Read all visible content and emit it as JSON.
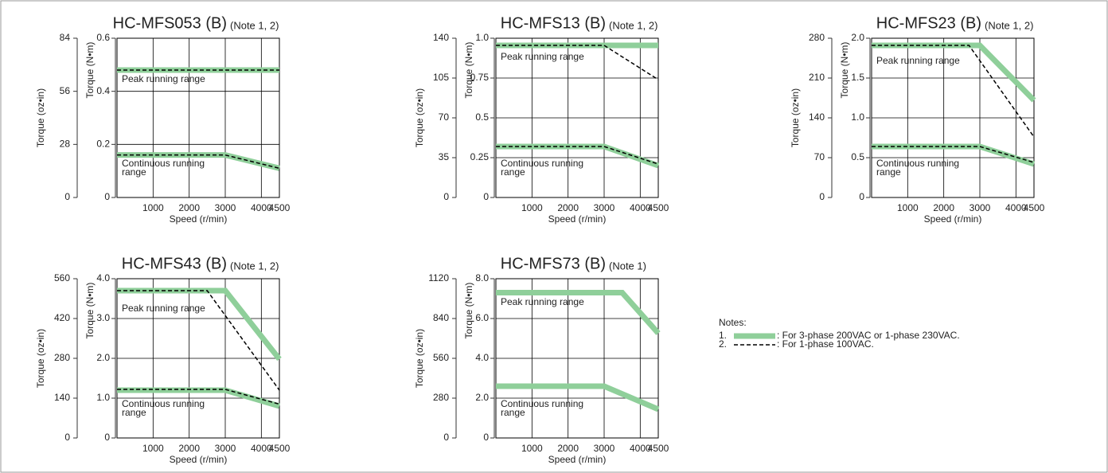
{
  "chart_data": [
    {
      "type": "line",
      "title": "HC-MFS053 (B)",
      "note": "(Note 1, 2)",
      "x_label": "Speed (r/min)",
      "y_label": "Torque (N•m)",
      "y2_label": "Torque (oz•in)",
      "xlim": [
        0,
        4500
      ],
      "xticks": [
        1000,
        2000,
        3000,
        4000,
        4500
      ],
      "ylim": [
        0,
        0.6
      ],
      "yticks": [
        0,
        0.2,
        0.4,
        0.6
      ],
      "y2lim": [
        0,
        84
      ],
      "y2ticks": [
        0,
        28,
        56,
        84
      ],
      "annotations": [
        "Peak running range",
        "Continuous running",
        "range"
      ],
      "series": [
        {
          "color": "#8fcf9a",
          "style": "solid",
          "x": [
            0,
            4500
          ],
          "values": [
            0.48,
            0.48
          ]
        },
        {
          "color": "#8fcf9a",
          "style": "solid",
          "x": [
            0,
            3000,
            4500
          ],
          "values": [
            0.16,
            0.16,
            0.11
          ]
        },
        {
          "color": "#000000",
          "style": "dashed",
          "x": [
            0,
            4500
          ],
          "values": [
            0.48,
            0.48
          ]
        },
        {
          "color": "#000000",
          "style": "dashed",
          "x": [
            0,
            3000,
            4500
          ],
          "values": [
            0.16,
            0.16,
            0.11
          ]
        }
      ]
    },
    {
      "type": "line",
      "title": "HC-MFS13 (B)",
      "note": "(Note 1, 2)",
      "x_label": "Speed (r/min)",
      "y_label": "Torque (N•m)",
      "y2_label": "Torque (oz•in)",
      "xlim": [
        0,
        4500
      ],
      "xticks": [
        1000,
        2000,
        3000,
        4000,
        4500
      ],
      "ylim": [
        0,
        1
      ],
      "yticks": [
        0,
        0.25,
        0.5,
        0.75,
        {
          "value": 1,
          "label": "1.0"
        }
      ],
      "y2lim": [
        0,
        140
      ],
      "y2ticks": [
        0,
        35,
        70,
        105,
        140
      ],
      "annotations": [
        "Peak running range",
        "Continuous running",
        "range"
      ],
      "series": [
        {
          "color": "#8fcf9a",
          "style": "solid",
          "x": [
            0,
            4500
          ],
          "values": [
            0.955,
            0.955
          ]
        },
        {
          "color": "#8fcf9a",
          "style": "solid",
          "x": [
            0,
            3000,
            4500
          ],
          "values": [
            0.32,
            0.32,
            0.2
          ]
        },
        {
          "color": "#000000",
          "style": "dashed",
          "x": [
            0,
            3000,
            4500
          ],
          "values": [
            0.955,
            0.955,
            0.74
          ]
        },
        {
          "color": "#000000",
          "style": "dashed",
          "x": [
            0,
            3000,
            4500
          ],
          "values": [
            0.32,
            0.32,
            0.21
          ]
        }
      ]
    },
    {
      "type": "line",
      "title": "HC-MFS23 (B)",
      "note": "(Note 1, 2)",
      "x_label": "Speed (r/min)",
      "y_label": "Torque (N•m)",
      "y2_label": "Torque (oz•in)",
      "xlim": [
        0,
        4500
      ],
      "xticks": [
        1000,
        2000,
        3000,
        4000,
        4500
      ],
      "ylim": [
        0,
        2
      ],
      "yticks": [
        0,
        0.5,
        {
          "value": 1,
          "label": "1.0"
        },
        1.5,
        {
          "value": 2,
          "label": "2.0"
        }
      ],
      "y2lim": [
        0,
        280
      ],
      "y2ticks": [
        0,
        70,
        140,
        210,
        280
      ],
      "annotations": [
        "Peak running range",
        "Continuous running",
        "range"
      ],
      "series": [
        {
          "color": "#8fcf9a",
          "style": "solid",
          "x": [
            0,
            3000,
            4500
          ],
          "values": [
            1.91,
            1.91,
            1.22
          ]
        },
        {
          "color": "#8fcf9a",
          "style": "solid",
          "x": [
            0,
            3000,
            4500
          ],
          "values": [
            0.64,
            0.64,
            0.42
          ]
        },
        {
          "color": "#000000",
          "style": "dashed",
          "x": [
            0,
            2700,
            4500
          ],
          "values": [
            1.91,
            1.91,
            0.76
          ]
        },
        {
          "color": "#000000",
          "style": "dashed",
          "x": [
            0,
            3000,
            4500
          ],
          "values": [
            0.64,
            0.64,
            0.44
          ]
        }
      ]
    },
    {
      "type": "line",
      "title": "HC-MFS43 (B)",
      "note": "(Note 1, 2)",
      "x_label": "Speed (r/min)",
      "y_label": "Torque (N•m)",
      "y2_label": "Torque (oz•in)",
      "xlim": [
        0,
        4500
      ],
      "xticks": [
        1000,
        2000,
        3000,
        4000,
        4500
      ],
      "ylim": [
        0,
        4
      ],
      "yticks": [
        0,
        {
          "value": 1,
          "label": "1.0"
        },
        {
          "value": 2,
          "label": "2.0"
        },
        {
          "value": 3,
          "label": "3.0"
        },
        {
          "value": 4,
          "label": "4.0"
        }
      ],
      "y2lim": [
        0,
        560
      ],
      "y2ticks": [
        0,
        140,
        280,
        420,
        560
      ],
      "annotations": [
        "Peak running range",
        "Continuous running",
        "range"
      ],
      "series": [
        {
          "color": "#8fcf9a",
          "style": "solid",
          "x": [
            0,
            3000,
            4500
          ],
          "values": [
            3.7,
            3.7,
            1.98
          ]
        },
        {
          "color": "#8fcf9a",
          "style": "solid",
          "x": [
            0,
            3000,
            4500
          ],
          "values": [
            1.2,
            1.2,
            0.8
          ]
        },
        {
          "color": "#000000",
          "style": "dashed",
          "x": [
            0,
            2500,
            4500
          ],
          "values": [
            3.7,
            3.7,
            1.2
          ]
        },
        {
          "color": "#000000",
          "style": "dashed",
          "x": [
            0,
            3000,
            4500
          ],
          "values": [
            1.22,
            1.22,
            0.85
          ]
        }
      ]
    },
    {
      "type": "line",
      "title": "HC-MFS73 (B)",
      "note": "(Note 1)",
      "x_label": "Speed (r/min)",
      "y_label": "Torque (N•m)",
      "y2_label": "Torque (oz•in)",
      "xlim": [
        0,
        4500
      ],
      "xticks": [
        1000,
        2000,
        3000,
        4000,
        4500
      ],
      "ylim": [
        0,
        8
      ],
      "yticks": [
        0,
        {
          "value": 2,
          "label": "2.0"
        },
        {
          "value": 4,
          "label": "4.0"
        },
        {
          "value": 6,
          "label": "6.0"
        },
        {
          "value": 8,
          "label": "8.0"
        }
      ],
      "y2lim": [
        0,
        1120
      ],
      "y2ticks": [
        0,
        280,
        560,
        840,
        1120
      ],
      "annotations": [
        "Peak running range",
        "Continuous running",
        "range"
      ],
      "series": [
        {
          "color": "#8fcf9a",
          "style": "solid",
          "x": [
            0,
            3500,
            4500
          ],
          "values": [
            7.3,
            7.3,
            5.26
          ]
        },
        {
          "color": "#8fcf9a",
          "style": "solid",
          "x": [
            0,
            3000,
            4500
          ],
          "values": [
            2.6,
            2.6,
            1.44
          ]
        }
      ]
    }
  ],
  "notes": {
    "title": "Notes:",
    "items": [
      {
        "number": "1.",
        "text": ": For 3-phase 200VAC or 1-phase 230VAC.",
        "color": "#8fcf9a",
        "style": "solid"
      },
      {
        "number": "2.",
        "text": ": For 1-phase 100VAC.",
        "color": "#000000",
        "style": "dashed"
      }
    ]
  }
}
